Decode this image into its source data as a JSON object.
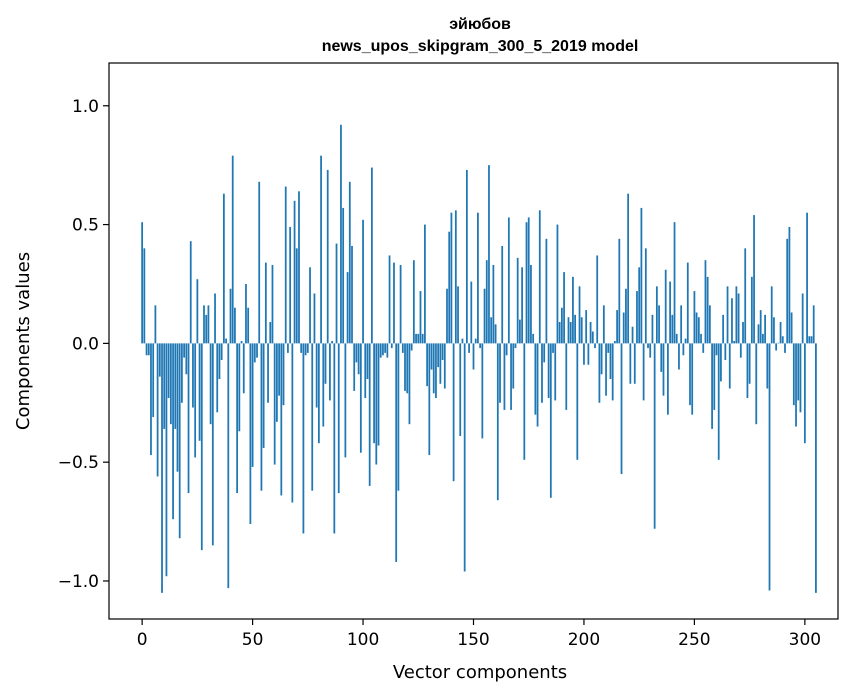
{
  "chart_data": {
    "type": "bar",
    "title_line1": "эйюбов",
    "title_line2": "news_upos_skipgram_300_5_2019 model",
    "xlabel": "Vector components",
    "ylabel": "Components values",
    "xlim": [
      -15,
      315
    ],
    "ylim": [
      -1.16,
      1.18
    ],
    "xticks": [
      0,
      50,
      100,
      150,
      200,
      250,
      300
    ],
    "xtick_labels": [
      "0",
      "50",
      "100",
      "150",
      "200",
      "250",
      "300"
    ],
    "yticks": [
      -1.0,
      -0.5,
      0.0,
      0.5,
      1.0
    ],
    "ytick_labels": [
      "−1.0",
      "−0.5",
      "0.0",
      "0.5",
      "1.0"
    ],
    "bar_color": "#1f77b4",
    "values": [
      0.51,
      0.4,
      -0.05,
      -0.05,
      -0.47,
      -0.31,
      0.16,
      -0.56,
      -0.14,
      -1.05,
      -0.36,
      -0.98,
      -0.23,
      -0.34,
      -0.74,
      -0.36,
      -0.54,
      -0.82,
      -0.25,
      -0.06,
      -0.13,
      -0.63,
      0.43,
      -0.27,
      -0.48,
      0.27,
      -0.41,
      -0.87,
      0.16,
      0.12,
      0.16,
      -0.34,
      -0.85,
      0.21,
      -0.29,
      -0.15,
      -0.07,
      0.63,
      0.02,
      -1.03,
      0.23,
      0.79,
      0.15,
      -0.63,
      -0.37,
      0.01,
      -0.21,
      0.25,
      0.15,
      -0.76,
      -0.52,
      -0.08,
      -0.06,
      0.68,
      -0.62,
      -0.44,
      0.34,
      -0.25,
      0.09,
      0.33,
      -0.51,
      -0.33,
      -0.22,
      -0.64,
      -0.26,
      0.66,
      -0.04,
      0.49,
      -0.67,
      0.6,
      0.4,
      0.64,
      -0.04,
      -0.8,
      -0.05,
      -0.04,
      0.32,
      -0.62,
      0.21,
      -0.27,
      -0.42,
      0.79,
      -0.35,
      -0.17,
      0.73,
      -0.24,
      0.01,
      -0.8,
      0.42,
      -0.63,
      0.92,
      0.57,
      -0.48,
      0.3,
      0.68,
      0.41,
      -0.2,
      -0.08,
      -0.13,
      -0.46,
      0.52,
      -0.23,
      -0.15,
      -0.6,
      0.74,
      -0.42,
      -0.51,
      -0.43,
      -0.06,
      -0.05,
      -0.04,
      -0.06,
      0.37,
      -0.02,
      0.34,
      -0.92,
      -0.62,
      0.33,
      -0.04,
      -0.2,
      -0.21,
      -0.34,
      -0.03,
      0.35,
      0.04,
      0.04,
      0.22,
      0.04,
      0.5,
      -0.18,
      -0.47,
      -0.11,
      -0.21,
      -0.23,
      -0.1,
      -0.17,
      -0.07,
      -0.19,
      0.23,
      0.47,
      0.55,
      -0.58,
      0.56,
      0.24,
      -0.39,
      0.02,
      -0.96,
      0.73,
      -0.04,
      0.26,
      -0.11,
      0.02,
      0.55,
      -0.02,
      -0.4,
      0.23,
      0.35,
      0.75,
      0.11,
      0.33,
      0.08,
      -0.66,
      -0.25,
      0.41,
      -0.28,
      -0.05,
      0.53,
      -0.28,
      -0.19,
      -0.02,
      0.36,
      0.1,
      0.32,
      -0.49,
      0.51,
      0.53,
      0.33,
      0.04,
      -0.3,
      -0.35,
      0.56,
      -0.25,
      -0.08,
      0.44,
      -0.23,
      -0.65,
      -0.04,
      -0.24,
      0.5,
      0.09,
      0.15,
      0.3,
      -0.28,
      0.11,
      0.09,
      0.28,
      0.12,
      -0.49,
      0.24,
      0.11,
      -0.09,
      0.14,
      -0.09,
      0.09,
      0.05,
      -0.02,
      0.37,
      -0.25,
      -0.13,
      0.16,
      -0.22,
      -0.04,
      -0.15,
      -0.24,
      0.01,
      0.14,
      0.44,
      -0.55,
      0.13,
      0.23,
      0.63,
      -0.17,
      0.07,
      -0.17,
      0.22,
      0.32,
      0.57,
      -0.24,
      0.4,
      -0.02,
      -0.06,
      0.12,
      -0.78,
      0.24,
      0.16,
      -0.12,
      -0.22,
      0.31,
      -0.3,
      0.26,
      0.12,
      0.51,
      0.04,
      -0.11,
      0.16,
      -0.05,
      0.02,
      0.34,
      -0.26,
      -0.3,
      0.22,
      0.13,
      0.11,
      0.04,
      -0.04,
      0.35,
      0.28,
      0.16,
      -0.36,
      -0.28,
      -0.05,
      -0.49,
      -0.16,
      0.12,
      -0.07,
      0.24,
      -0.19,
      0.19,
      0.01,
      0.24,
      0.21,
      -0.06,
      0.09,
      0.4,
      -0.23,
      -0.17,
      0.28,
      0.54,
      -0.34,
      0.08,
      0.14,
      0.04,
      0.12,
      -0.19,
      -1.04,
      0.24,
      0.11,
      -0.03,
      0.0,
      0.09,
      0.03,
      -0.04,
      0.44,
      0.49,
      0.13,
      -0.26,
      -0.35,
      -0.24,
      -0.29,
      0.21,
      -0.42,
      0.55,
      0.03,
      0.03,
      0.16,
      -1.05
    ]
  }
}
